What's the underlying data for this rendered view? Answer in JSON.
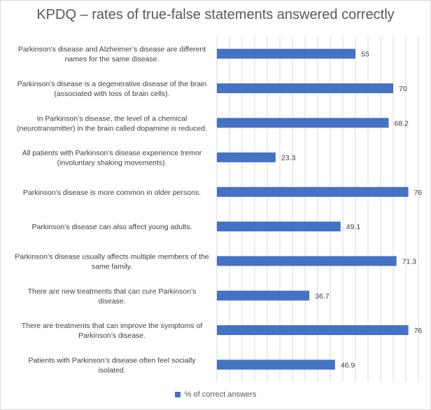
{
  "chart_data": {
    "type": "bar",
    "orientation": "horizontal",
    "title": "KPDQ – rates of true-false statements answered correctly",
    "categories": [
      [
        "Parkinson’s disease and Alzheimer’s disease are different",
        "names for the same disease."
      ],
      [
        "Parkinson’s disease is a degenerative disease of the brain",
        "(associated with loss of brain cells)."
      ],
      [
        "In Parkinson’s disease, the level of a chemical",
        "(neurotransmitter) in the brain called dopamine is reduced."
      ],
      [
        "All patients with Parkinson’s disease experience tremor",
        "(involuntary shaking movements)."
      ],
      [
        "Parkinson’s disease is more common in older persons."
      ],
      [
        "Parkinson’s disease can also affect young adults."
      ],
      [
        "Parkinson’s disease usually affects multiple members of the",
        "same family."
      ],
      [
        "There are new treatments that can cure Parkinson’s",
        "disease."
      ],
      [
        "There are treatments that can improve the symptoms of",
        "Parkinson’s disease."
      ],
      [
        "Patients with Parkinson’s disease often feel socially",
        "isolated."
      ]
    ],
    "series": [
      {
        "name": "% of correct answers",
        "values": [
          55,
          70,
          68.2,
          23.3,
          76,
          49.1,
          71.3,
          36.7,
          76,
          46.9
        ],
        "labels": [
          "55",
          "70",
          "68.2",
          "23.3",
          "76",
          "49.1",
          "71.3",
          "36.7",
          "76",
          "46.9"
        ]
      }
    ],
    "xlim": [
      0,
      80
    ],
    "grid_step": 5,
    "grid": true,
    "legend_position": "bottom",
    "colors": {
      "bar": "#4472c4",
      "grid": "#d9d9d9",
      "text": "#404040",
      "title": "#595959"
    }
  }
}
